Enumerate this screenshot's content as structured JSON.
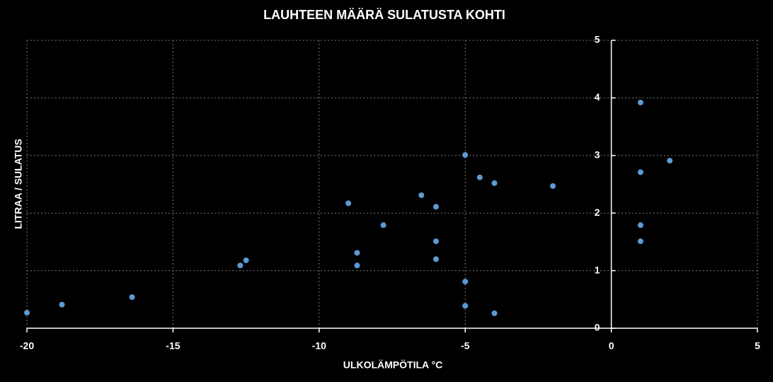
{
  "chart_data": {
    "type": "scatter",
    "title": "LAUHTEEN MÄÄRÄ SULATUSTA KOHTI",
    "x_label": "ULKOLÄMPÖTILA °C",
    "y_label": "LITRAA / SULATUS",
    "x": [
      -20,
      -18.8,
      -16.4,
      -12.7,
      -12.5,
      -9.0,
      -8.7,
      -8.7,
      -7.8,
      -6.5,
      -6.0,
      -6.0,
      -6.0,
      -5,
      -5,
      -5,
      -4.5,
      -4,
      -4,
      -2,
      1,
      1,
      1,
      1,
      2
    ],
    "values": [
      0.27,
      0.41,
      0.54,
      1.09,
      1.18,
      2.17,
      1.31,
      1.09,
      1.79,
      2.31,
      2.11,
      1.51,
      1.2,
      3.01,
      0.81,
      0.39,
      2.62,
      2.52,
      0.26,
      2.47,
      3.92,
      2.71,
      1.79,
      1.51,
      2.91
    ],
    "color": "#5b9bd5",
    "xlim": [
      -20,
      5
    ],
    "xticks": [
      -20,
      -15,
      -10,
      -5,
      0,
      5
    ],
    "ylim": [
      0,
      5
    ],
    "yticks": [
      0,
      1,
      2,
      3,
      4,
      5
    ],
    "grid": true
  }
}
